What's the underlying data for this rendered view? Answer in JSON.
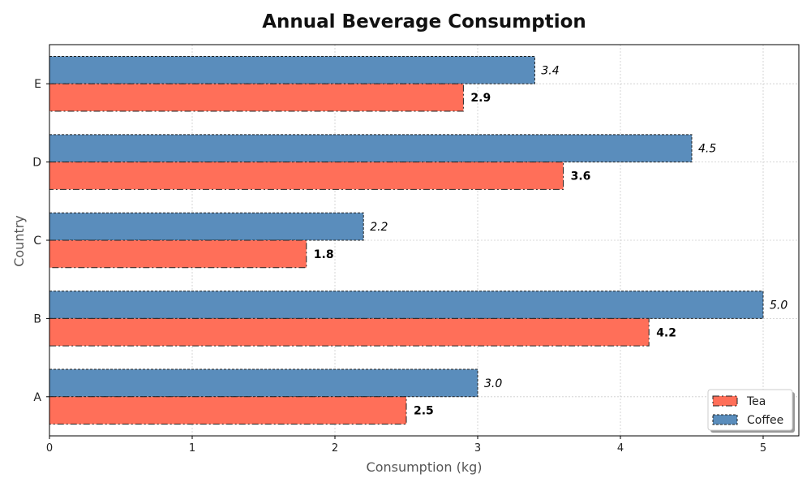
{
  "chart_data": {
    "type": "bar",
    "orientation": "horizontal",
    "title": "Annual Beverage Consumption",
    "xlabel": "Consumption (kg)",
    "ylabel": "Country",
    "categories": [
      "A",
      "B",
      "C",
      "D",
      "E"
    ],
    "series": [
      {
        "name": "Tea",
        "values": [
          2.5,
          4.2,
          1.8,
          3.6,
          2.9
        ],
        "color": "#ff6f59"
      },
      {
        "name": "Coffee",
        "values": [
          3.0,
          5.0,
          2.2,
          4.5,
          3.4
        ],
        "color": "#5a8dbc"
      }
    ],
    "data_labels": {
      "Tea": [
        "2.5",
        "4.2",
        "1.8",
        "3.6",
        "2.9"
      ],
      "Coffee": [
        "3.0",
        "5.0",
        "2.2",
        "4.5",
        "3.4"
      ]
    },
    "xticks": [
      0,
      1,
      2,
      3,
      4,
      5
    ],
    "xlim": [
      0,
      5.25
    ],
    "grid": true,
    "legend_position": "bottom-right"
  }
}
